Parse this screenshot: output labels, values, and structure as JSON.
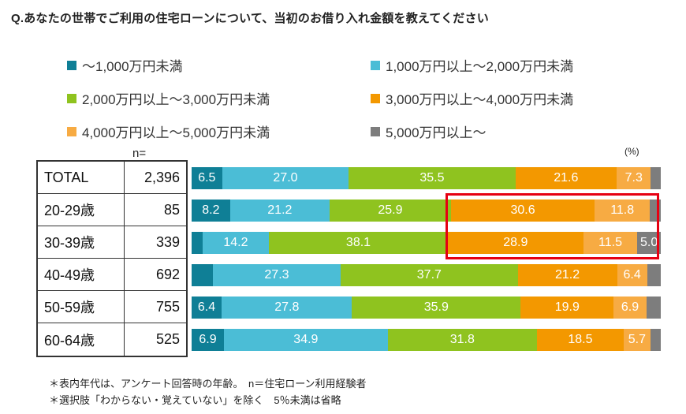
{
  "title": "Q.あなたの世帯でご利用の住宅ローンについて、当初のお借り入れ金額を教えてください",
  "notes": [
    "＊表内年代は、アンケート回答時の年齢。　n＝住宅ローン利用経験者",
    "＊選択肢「わからない・覚えていない」を除く　5％未満は省略"
  ],
  "chart_data": {
    "type": "bar",
    "stacked": true,
    "orientation": "horizontal",
    "unit": "(%)",
    "n_header": "n=",
    "xlim": [
      0,
      100
    ],
    "legend_position": "top",
    "categories": [
      "TOTAL",
      "20-29歳",
      "30-39歳",
      "40-49歳",
      "50-59歳",
      "60-64歳"
    ],
    "n_values": [
      "2,396",
      "85",
      "339",
      "692",
      "755",
      "525"
    ],
    "series": [
      {
        "name": "～1,000万円未満",
        "color": "#0f7f96",
        "values": [
          6.5,
          8.2,
          2.3,
          4.5,
          6.4,
          6.9
        ],
        "labels": [
          "6.5",
          "8.2",
          "",
          "",
          "6.4",
          "6.9"
        ]
      },
      {
        "name": "1,000万円以上～2,000万円未満",
        "color": "#4bbdd6",
        "values": [
          27.0,
          21.2,
          14.2,
          27.3,
          27.8,
          34.9
        ],
        "labels": [
          "27.0",
          "21.2",
          "14.2",
          "27.3",
          "27.8",
          "34.9"
        ]
      },
      {
        "name": "2,000万円以上～3,000万円未満",
        "color": "#8fc31f",
        "values": [
          35.5,
          25.9,
          38.1,
          37.7,
          35.9,
          31.8
        ],
        "labels": [
          "35.5",
          "25.9",
          "38.1",
          "37.7",
          "35.9",
          "31.8"
        ]
      },
      {
        "name": "3,000万円以上～4,000万円未満",
        "color": "#f39800",
        "values": [
          21.6,
          30.6,
          28.9,
          21.2,
          19.9,
          18.5
        ],
        "labels": [
          "21.6",
          "30.6",
          "28.9",
          "21.2",
          "19.9",
          "18.5"
        ]
      },
      {
        "name": "4,000万円以上～5,000万円未満",
        "color": "#f7ab43",
        "values": [
          7.3,
          11.8,
          11.5,
          6.4,
          6.9,
          5.7
        ],
        "labels": [
          "7.3",
          "11.8",
          "11.5",
          "6.4",
          "6.9",
          "5.7"
        ]
      },
      {
        "name": "5,000万円以上～",
        "color": "#7d7d7d",
        "values": [
          2.1,
          2.3,
          5.0,
          2.9,
          3.1,
          2.2
        ],
        "labels": [
          "",
          "",
          "5.0",
          "",
          "",
          ""
        ]
      }
    ],
    "highlight": {
      "color": "#e60012",
      "rows": [
        "20-29歳",
        "30-39歳"
      ],
      "segments": [
        "3,000万円以上～4,000万円未満",
        "4,000万円以上～5,000万円未満",
        "5,000万円以上～"
      ]
    }
  }
}
